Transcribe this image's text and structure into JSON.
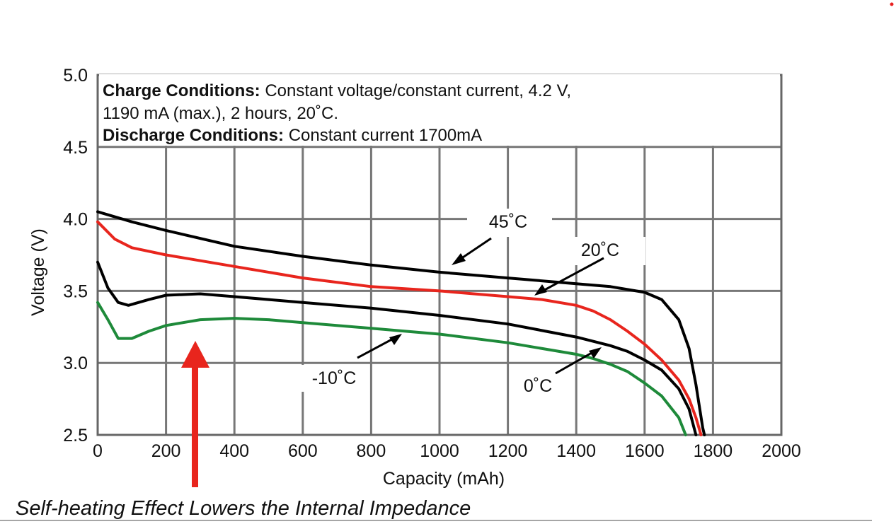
{
  "chart_data": {
    "type": "line",
    "xlabel": "Capacity (mAh)",
    "ylabel": "Voltage (V)",
    "xlim": [
      0,
      2000
    ],
    "ylim": [
      2.5,
      5.0
    ],
    "x_ticks": [
      "0",
      "200",
      "400",
      "600",
      "800",
      "1000",
      "1200",
      "1400",
      "1600",
      "1800",
      "2000"
    ],
    "y_ticks": [
      "2.5",
      "3.0",
      "3.5",
      "4.0",
      "4.5",
      "5.0"
    ],
    "grid": true,
    "conditions": [
      {
        "bold": "Charge Conditions:",
        "text": " Constant voltage/constant current, 4.2 V,"
      },
      {
        "bold": "",
        "text": "1190 mA (max.), 2 hours, 20˚C."
      },
      {
        "bold": "Discharge Conditions:",
        "text": " Constant current 1700mA"
      }
    ],
    "series": [
      {
        "name": "45˚C",
        "color": "#000000",
        "x": [
          0,
          100,
          200,
          400,
          600,
          800,
          1000,
          1200,
          1400,
          1500,
          1600,
          1650,
          1700,
          1730,
          1750,
          1760,
          1770,
          1775
        ],
        "y": [
          4.05,
          3.98,
          3.92,
          3.81,
          3.74,
          3.68,
          3.63,
          3.59,
          3.55,
          3.53,
          3.49,
          3.44,
          3.3,
          3.1,
          2.85,
          2.7,
          2.55,
          2.5
        ]
      },
      {
        "name": "20˚C",
        "color": "#e8251d",
        "x": [
          0,
          50,
          100,
          200,
          400,
          600,
          800,
          1000,
          1200,
          1300,
          1400,
          1450,
          1500,
          1550,
          1600,
          1650,
          1700,
          1730,
          1750,
          1765
        ],
        "y": [
          3.98,
          3.86,
          3.8,
          3.75,
          3.67,
          3.59,
          3.53,
          3.5,
          3.46,
          3.44,
          3.4,
          3.36,
          3.3,
          3.22,
          3.13,
          3.02,
          2.88,
          2.75,
          2.62,
          2.5
        ]
      },
      {
        "name": "0˚C",
        "color": "#000000",
        "x": [
          0,
          30,
          60,
          90,
          150,
          200,
          300,
          400,
          600,
          800,
          1000,
          1200,
          1400,
          1500,
          1550,
          1600,
          1650,
          1700,
          1730,
          1750
        ],
        "y": [
          3.7,
          3.52,
          3.42,
          3.4,
          3.44,
          3.47,
          3.48,
          3.46,
          3.42,
          3.38,
          3.33,
          3.27,
          3.18,
          3.12,
          3.08,
          3.02,
          2.95,
          2.82,
          2.68,
          2.5
        ]
      },
      {
        "name": "-10˚C",
        "color": "#1e8a3a",
        "x": [
          0,
          30,
          60,
          100,
          150,
          200,
          300,
          400,
          500,
          600,
          800,
          1000,
          1200,
          1400,
          1450,
          1500,
          1550,
          1600,
          1650,
          1700,
          1720
        ],
        "y": [
          3.42,
          3.3,
          3.17,
          3.17,
          3.22,
          3.26,
          3.3,
          3.31,
          3.3,
          3.28,
          3.24,
          3.2,
          3.14,
          3.06,
          3.03,
          2.99,
          2.94,
          2.86,
          2.77,
          2.62,
          2.5
        ]
      }
    ],
    "annotations": [
      "45˚C",
      "20˚C",
      "0˚C",
      "-10˚C"
    ],
    "caption": "Self-heating Effect Lowers the Internal Impedance"
  }
}
